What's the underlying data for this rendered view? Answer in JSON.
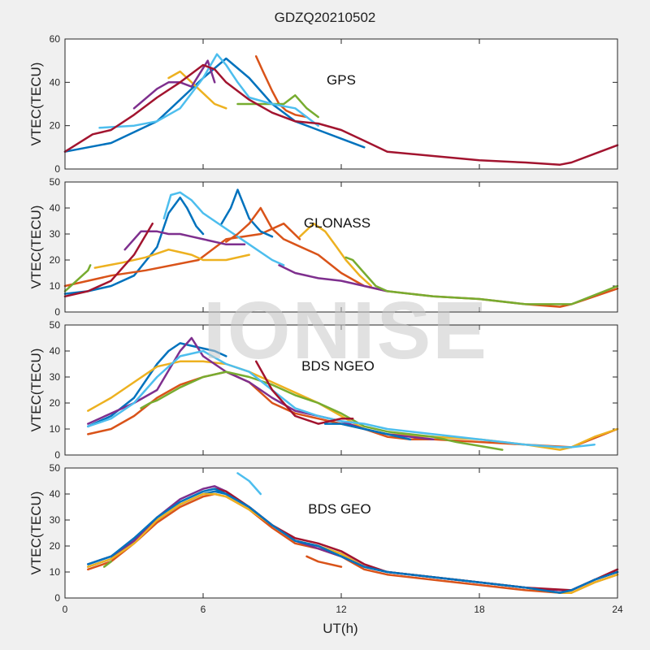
{
  "figure": {
    "title": "GDZQ20210502",
    "xlabel": "UT(h)",
    "watermark": "IONISE",
    "colors": [
      "#0072BD",
      "#D95319",
      "#EDB120",
      "#7E2F8E",
      "#77AC30",
      "#4DBEEE",
      "#A2142F"
    ]
  },
  "chart_data": [
    {
      "type": "line",
      "panel_label": "GPS",
      "ylabel": "VTEC(TECU)",
      "xlim": [
        0,
        24
      ],
      "ylim": [
        0,
        60
      ],
      "xticks": [
        0,
        6,
        12,
        18,
        24
      ],
      "yticks": [
        0,
        20,
        40,
        60
      ],
      "series": [
        {
          "x": [
            0,
            2,
            4,
            5,
            6,
            7,
            8,
            9,
            10,
            11,
            12,
            13
          ],
          "y": [
            8,
            12,
            22,
            32,
            42,
            51,
            42,
            30,
            22,
            18,
            14,
            10
          ]
        },
        {
          "x": [
            8.3,
            8.6,
            9,
            9.3,
            9.6,
            10,
            10.5
          ],
          "y": [
            52,
            45,
            36,
            30,
            27,
            25,
            24
          ]
        },
        {
          "x": [
            4.5,
            5,
            5.5,
            6,
            6.5,
            7
          ],
          "y": [
            42,
            45,
            40,
            35,
            30,
            28
          ]
        },
        {
          "x": [
            3,
            4,
            4.5,
            5,
            5.5,
            6.2,
            6.5
          ],
          "y": [
            28,
            37,
            40,
            40,
            38,
            50,
            40
          ]
        },
        {
          "x": [
            7.5,
            8.5,
            9.5,
            10,
            10.5,
            11
          ],
          "y": [
            30,
            30,
            30,
            34,
            28,
            24
          ]
        },
        {
          "x": [
            1.5,
            3,
            4,
            5,
            6,
            6.6,
            7,
            7.5,
            8,
            9,
            10,
            10.5,
            11
          ],
          "y": [
            19,
            20,
            22,
            28,
            42,
            53,
            48,
            40,
            33,
            30,
            28,
            24,
            20
          ]
        },
        {
          "x": [
            0,
            1.2,
            2,
            3,
            4,
            5,
            6,
            6.5,
            7,
            8,
            9,
            10,
            11,
            12,
            13,
            14,
            16,
            18,
            20,
            21.5,
            22,
            23,
            24
          ],
          "y": [
            8,
            16,
            18,
            25,
            33,
            40,
            48,
            46,
            40,
            32,
            26,
            22,
            21,
            18,
            13,
            8,
            6,
            4,
            3,
            2,
            3,
            7,
            11
          ]
        }
      ]
    },
    {
      "type": "line",
      "panel_label": "GLONASS",
      "ylabel": "VTEC(TECU)",
      "xlim": [
        0,
        24
      ],
      "ylim": [
        0,
        50
      ],
      "xticks": [
        0,
        6,
        12,
        18,
        24
      ],
      "yticks": [
        0,
        10,
        20,
        30,
        40,
        50
      ],
      "series": [
        {
          "x": [
            0,
            1,
            2,
            3,
            4,
            4.5,
            5,
            5.3,
            5.7,
            6
          ],
          "y": [
            7,
            8,
            10,
            14,
            25,
            38,
            44,
            40,
            33,
            30
          ]
        },
        {
          "x": [
            0,
            1,
            2,
            3.5,
            5.8,
            7,
            8.5,
            9.5,
            10.2
          ],
          "y": [
            10,
            12,
            14,
            16,
            20,
            28,
            30,
            34,
            28
          ]
        },
        {
          "x": [
            1.3,
            2.5,
            3.5,
            4.5,
            5,
            5.5,
            6,
            7,
            8
          ],
          "y": [
            17,
            19,
            21,
            24,
            23,
            22,
            20,
            20,
            22
          ]
        },
        {
          "x": [
            2.6,
            3.3,
            4,
            4.5,
            5,
            5.5,
            6,
            7,
            7.8
          ],
          "y": [
            24,
            31,
            31,
            30,
            30,
            29,
            28,
            26,
            26
          ]
        },
        {
          "x": [
            0,
            0.5,
            1,
            1.1
          ],
          "y": [
            8,
            12,
            16,
            18
          ]
        },
        {
          "x": [
            4.3,
            4.6,
            5,
            5.5,
            6,
            7,
            8,
            9,
            9.5
          ],
          "y": [
            36,
            45,
            46,
            43,
            38,
            32,
            26,
            20,
            18
          ]
        },
        {
          "x": [
            0,
            1,
            2,
            3,
            3.8
          ],
          "y": [
            6,
            8,
            12,
            22,
            34
          ]
        },
        {
          "x": [
            6.8,
            7.2,
            7.5,
            8,
            8.5,
            9
          ],
          "y": [
            34,
            40,
            47,
            36,
            31,
            29
          ]
        },
        {
          "x": [
            7,
            7.5,
            8,
            8.5,
            9,
            9.5,
            10,
            11,
            12,
            13,
            14,
            16,
            18,
            20,
            21.5,
            22,
            23,
            24
          ],
          "y": [
            27,
            30,
            34,
            40,
            32,
            28,
            26,
            22,
            15,
            10,
            8,
            6,
            5,
            3,
            2,
            3,
            6,
            9
          ]
        },
        {
          "x": [
            10.2,
            10.8,
            11.3,
            11.8,
            12.2,
            12.8,
            13.3
          ],
          "y": [
            29,
            34,
            31,
            25,
            20,
            14,
            10
          ]
        },
        {
          "x": [
            9.3,
            10,
            11,
            12,
            13,
            14
          ],
          "y": [
            18,
            15,
            13,
            12,
            10,
            8
          ]
        },
        {
          "x": [
            12.2,
            12.5,
            13,
            13.5,
            14,
            15,
            16,
            18,
            20,
            22,
            24
          ],
          "y": [
            21,
            20,
            15,
            10,
            8,
            7,
            6,
            5,
            3,
            3,
            10
          ]
        }
      ]
    },
    {
      "type": "line",
      "panel_label": "BDS NGEO",
      "ylabel": "VTEC(TECU)",
      "xlim": [
        0,
        24
      ],
      "ylim": [
        0,
        50
      ],
      "xticks": [
        0,
        6,
        12,
        18,
        24
      ],
      "yticks": [
        0,
        10,
        20,
        30,
        40,
        50
      ],
      "series": [
        {
          "x": [
            1,
            2,
            3,
            4,
            4.5,
            5,
            5.5,
            6.5,
            7
          ],
          "y": [
            11,
            15,
            22,
            35,
            40,
            43,
            42,
            40,
            38
          ]
        },
        {
          "x": [
            1,
            2,
            3,
            4,
            5,
            6,
            7,
            8,
            9,
            10,
            11,
            12,
            13,
            14,
            15,
            16,
            18,
            20,
            22,
            24
          ],
          "y": [
            8,
            10,
            15,
            22,
            27,
            30,
            32,
            28,
            20,
            16,
            14,
            12,
            10,
            7,
            6,
            6,
            5,
            4,
            3,
            10
          ]
        },
        {
          "x": [
            1,
            2,
            3,
            4,
            5,
            6,
            7,
            8,
            9,
            10,
            11,
            12,
            13,
            14,
            16,
            18,
            20,
            21.5,
            22,
            23,
            24
          ],
          "y": [
            17,
            22,
            28,
            34,
            36,
            36,
            35,
            32,
            28,
            24,
            20,
            15,
            10,
            8,
            7,
            6,
            4,
            2,
            3,
            7,
            10
          ]
        },
        {
          "x": [
            1,
            2,
            3,
            4,
            5,
            5.5,
            6,
            7,
            8,
            9,
            10,
            11,
            12,
            13,
            14,
            15,
            16
          ],
          "y": [
            12,
            16,
            20,
            25,
            40,
            45,
            38,
            32,
            28,
            22,
            17,
            15,
            13,
            10,
            8,
            7,
            6
          ]
        },
        {
          "x": [
            3.3,
            3.7,
            4,
            5,
            6,
            7,
            8,
            9,
            10,
            11,
            12,
            13,
            14,
            16,
            17,
            19
          ],
          "y": [
            18,
            20,
            21,
            26,
            30,
            32,
            30,
            27,
            23,
            20,
            16,
            11,
            9,
            7,
            5,
            2
          ]
        },
        {
          "x": [
            1,
            2,
            3,
            4,
            5,
            6,
            7,
            8,
            9,
            10,
            11,
            12,
            13,
            14,
            16,
            18,
            20,
            21.5,
            22,
            23
          ],
          "y": [
            11,
            14,
            20,
            30,
            38,
            40,
            35,
            32,
            25,
            18,
            15,
            13,
            12,
            10,
            8,
            6,
            4,
            3,
            3,
            4
          ]
        },
        {
          "x": [
            8.3,
            9,
            10,
            11,
            12,
            12.5
          ],
          "y": [
            36,
            25,
            15,
            12,
            14,
            14
          ]
        },
        {
          "x": [
            11.3,
            12,
            13,
            14,
            15
          ],
          "y": [
            12,
            12,
            10,
            8,
            6
          ]
        }
      ]
    },
    {
      "type": "line",
      "panel_label": "BDS GEO",
      "ylabel": "VTEC(TECU)",
      "xlim": [
        0,
        24
      ],
      "ylim": [
        0,
        50
      ],
      "xticks": [
        0,
        6,
        12,
        18,
        24
      ],
      "yticks": [
        0,
        10,
        20,
        30,
        40,
        50
      ],
      "series": [
        {
          "x": [
            1,
            2,
            3,
            4,
            5,
            6,
            6.5,
            7,
            8,
            9,
            10,
            11,
            12,
            13,
            14,
            16,
            18,
            20,
            21.5,
            22,
            23,
            24
          ],
          "y": [
            12,
            15,
            22,
            30,
            36,
            40,
            41,
            40,
            35,
            28,
            22,
            20,
            17,
            12,
            10,
            8,
            6,
            4,
            2,
            3,
            7,
            10
          ]
        },
        {
          "x": [
            1,
            2,
            3,
            4,
            5,
            6,
            6.5,
            7,
            8,
            9,
            10,
            11,
            12,
            13,
            14,
            16,
            18,
            20,
            21.5,
            22,
            23,
            24
          ],
          "y": [
            11,
            14,
            21,
            29,
            35,
            39,
            40,
            39,
            34,
            27,
            21,
            19,
            16,
            11,
            9,
            7,
            5,
            3,
            2,
            2,
            6,
            9
          ]
        },
        {
          "x": [
            1,
            2,
            3,
            4,
            5,
            6,
            6.5,
            7,
            8,
            9,
            10,
            11,
            12,
            13,
            14,
            16,
            18,
            20,
            21.5,
            22,
            23,
            24
          ],
          "y": [
            12,
            15,
            21,
            30,
            36,
            40,
            40,
            39,
            34,
            28,
            22,
            20,
            17,
            12,
            10,
            8,
            6,
            4,
            2,
            2,
            6,
            9
          ]
        },
        {
          "x": [
            1,
            2,
            3,
            4,
            5,
            6,
            6.5,
            7,
            8,
            9,
            10,
            11,
            12,
            13,
            14,
            16,
            18,
            20,
            21.5,
            22,
            23,
            24
          ],
          "y": [
            13,
            16,
            22,
            31,
            38,
            42,
            43,
            41,
            35,
            28,
            22,
            19,
            16,
            12,
            10,
            8,
            6,
            4,
            3,
            3,
            7,
            10
          ]
        },
        {
          "x": [
            1.7,
            2
          ],
          "y": [
            12,
            14
          ]
        },
        {
          "x": [
            7.5,
            8,
            8.5
          ],
          "y": [
            48,
            45,
            40
          ]
        },
        {
          "x": [
            6.5,
            7,
            8,
            9,
            10,
            11,
            12,
            13,
            14,
            16,
            18,
            20,
            22,
            23,
            24
          ],
          "y": [
            42,
            41,
            35,
            28,
            23,
            21,
            18,
            13,
            10,
            8,
            6,
            4,
            3,
            7,
            11
          ]
        },
        {
          "x": [
            1,
            2,
            3,
            4,
            5,
            6,
            6.5,
            7,
            8,
            9,
            10,
            11,
            12,
            13,
            14,
            16,
            18,
            20,
            21.5,
            22,
            23,
            24
          ],
          "y": [
            13,
            16,
            23,
            31,
            37,
            41,
            42,
            40,
            35,
            28,
            22,
            20,
            16,
            12,
            10,
            8,
            6,
            4,
            2,
            3,
            7,
            10
          ]
        },
        {
          "x": [
            10.5,
            11,
            12
          ],
          "y": [
            16,
            14,
            12
          ]
        }
      ]
    }
  ]
}
